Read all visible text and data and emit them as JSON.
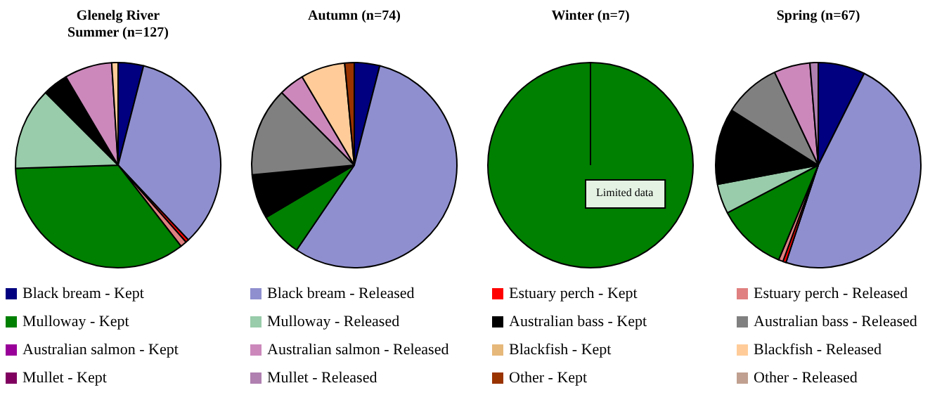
{
  "chart_data": {
    "type": "pie",
    "title": "Glenelg River",
    "legend": "bottom",
    "annotations": [
      "Limited data"
    ],
    "categories": [
      "Black bream - Kept",
      "Black bream - Released",
      "Estuary perch - Kept",
      "Estuary perch - Released",
      "Mulloway - Kept",
      "Mulloway - Released",
      "Australian bass - Kept",
      "Australian bass - Released",
      "Australian salmon - Kept",
      "Australian salmon - Released",
      "Blackfish - Kept",
      "Blackfish - Released",
      "Mullet - Kept",
      "Mullet - Released",
      "Other - Kept",
      "Other - Released"
    ],
    "colors": [
      "#000080",
      "#8f8fcf",
      "#ff0000",
      "#e08080",
      "#008000",
      "#99ccaa",
      "#000000",
      "#808080",
      "#990099",
      "#cc88bb",
      "#e6b87a",
      "#ffcc99",
      "#800060",
      "#b080b0",
      "#993300",
      "#c0a090"
    ],
    "series": [
      {
        "name": "Summer (n=127)",
        "values": [
          4,
          34,
          0.5,
          1,
          35,
          13,
          4,
          0,
          0,
          7.5,
          0,
          1,
          0,
          0,
          0,
          0
        ]
      },
      {
        "name": "Autumn (n=74)",
        "values": [
          4,
          55.5,
          0,
          0,
          7,
          0,
          7,
          14,
          0,
          4,
          0,
          7,
          0,
          0,
          1.5,
          0
        ]
      },
      {
        "name": "Winter (n=7)",
        "values": [
          0,
          0,
          0,
          0,
          100,
          0,
          0,
          0,
          0,
          0,
          0,
          0,
          0,
          0,
          0,
          0
        ]
      },
      {
        "name": "Spring (n=67)",
        "values": [
          7.4,
          47.7,
          0.5,
          0.7,
          11,
          4.7,
          12,
          9,
          0,
          5.7,
          0,
          0,
          0,
          1.3,
          0,
          0
        ]
      }
    ]
  }
}
